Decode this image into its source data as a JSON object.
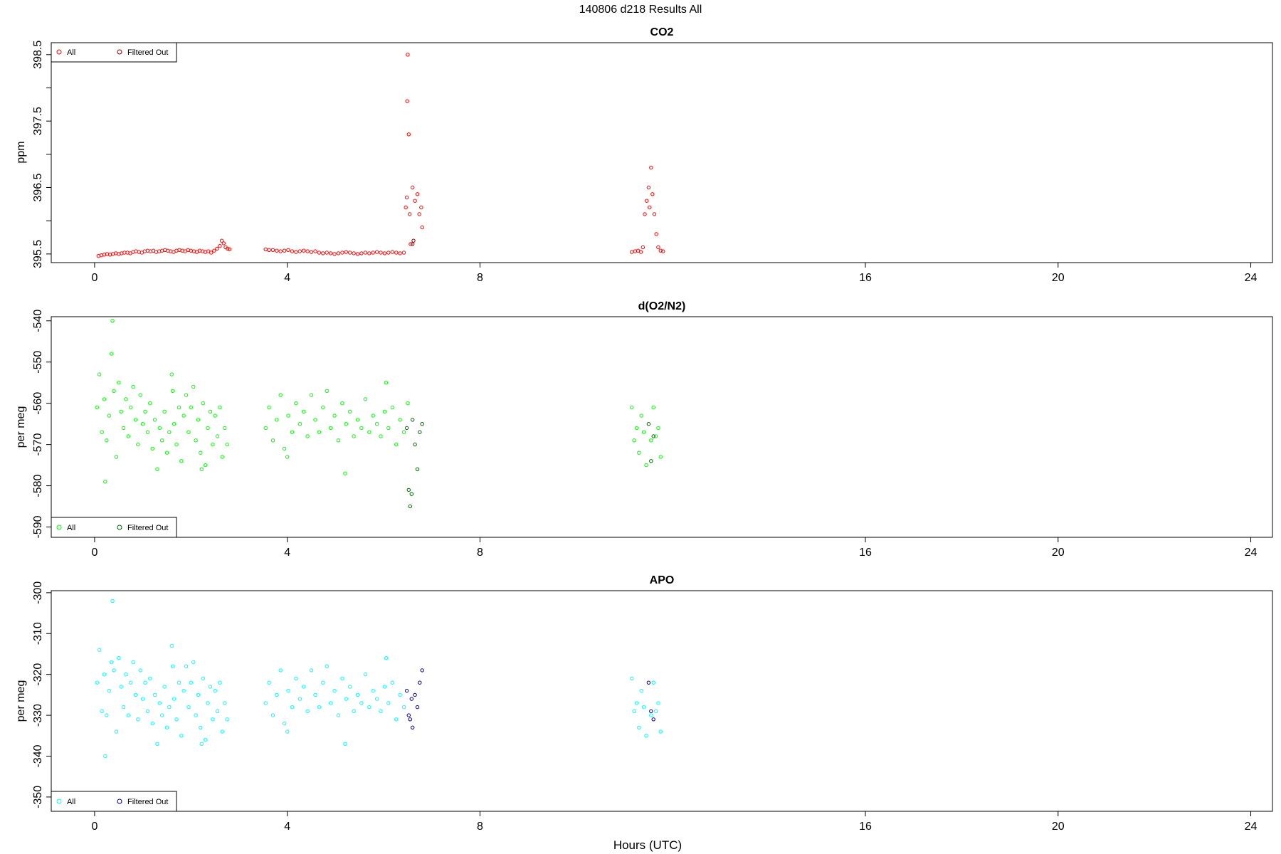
{
  "figure": {
    "title": "140806   d218   Results All",
    "xlabel": "Hours (UTC)"
  },
  "chart_data": [
    {
      "type": "scatter",
      "title": "CO2",
      "xlabel": "",
      "ylabel": "ppm",
      "xlim": [
        -0.9,
        24.45
      ],
      "ylim": [
        395.37,
        398.68
      ],
      "xticks": [
        0,
        4,
        8,
        16,
        20,
        24
      ],
      "xtick_labels": [
        "0",
        "4",
        "8",
        "16",
        "20",
        "24"
      ],
      "yticks": [
        395.5,
        396,
        396.5,
        397,
        397.5,
        398,
        398.5
      ],
      "ytick_labels": [
        "395.5",
        "",
        "396.5",
        "",
        "397.5",
        "",
        "398.5"
      ],
      "legend": {
        "position": "top-left",
        "entries": [
          "All",
          "Filtered Out"
        ]
      },
      "grid": false,
      "colors": {
        "all": "#ff0000",
        "filtered": "#8b0000"
      },
      "series": [
        {
          "name": "All",
          "x": [
            0.08,
            0.14,
            0.2,
            0.26,
            0.32,
            0.38,
            0.44,
            0.5,
            0.56,
            0.62,
            0.68,
            0.74,
            0.8,
            0.86,
            0.92,
            0.98,
            1.04,
            1.1,
            1.16,
            1.22,
            1.28,
            1.34,
            1.4,
            1.46,
            1.52,
            1.58,
            1.64,
            1.7,
            1.76,
            1.82,
            1.88,
            1.94,
            2.0,
            2.06,
            2.12,
            2.18,
            2.24,
            2.3,
            2.36,
            2.42,
            2.48,
            2.54,
            2.6,
            2.64,
            2.68,
            2.72,
            2.76,
            2.8,
            3.55,
            3.62,
            3.7,
            3.78,
            3.86,
            3.94,
            4.02,
            4.1,
            4.18,
            4.26,
            4.34,
            4.42,
            4.5,
            4.58,
            4.66,
            4.74,
            4.82,
            4.9,
            4.98,
            5.06,
            5.14,
            5.22,
            5.3,
            5.38,
            5.46,
            5.54,
            5.62,
            5.7,
            5.78,
            5.86,
            5.94,
            6.02,
            6.1,
            6.18,
            6.26,
            6.34,
            6.42,
            6.46,
            6.48,
            6.49,
            6.5,
            6.52,
            6.54,
            6.56,
            6.6,
            6.65,
            6.7,
            6.74,
            6.78,
            6.8,
            11.15,
            11.22,
            11.28,
            11.34,
            11.38,
            11.42,
            11.46,
            11.5,
            11.52,
            11.55,
            11.58,
            11.62,
            11.66,
            11.7,
            11.75,
            11.8
          ],
          "y": [
            395.47,
            395.48,
            395.49,
            395.5,
            395.49,
            395.5,
            395.51,
            395.5,
            395.51,
            395.52,
            395.52,
            395.51,
            395.53,
            395.54,
            395.53,
            395.52,
            395.54,
            395.55,
            395.54,
            395.55,
            395.53,
            395.54,
            395.55,
            395.56,
            395.55,
            395.54,
            395.53,
            395.55,
            395.56,
            395.55,
            395.54,
            395.56,
            395.55,
            395.54,
            395.53,
            395.55,
            395.54,
            395.53,
            395.54,
            395.52,
            395.55,
            395.58,
            395.62,
            395.7,
            395.66,
            395.6,
            395.58,
            395.57,
            395.57,
            395.56,
            395.56,
            395.55,
            395.54,
            395.55,
            395.56,
            395.54,
            395.53,
            395.54,
            395.55,
            395.54,
            395.53,
            395.54,
            395.52,
            395.51,
            395.52,
            395.51,
            395.5,
            395.51,
            395.52,
            395.53,
            395.52,
            395.51,
            395.5,
            395.51,
            395.52,
            395.51,
            395.52,
            395.53,
            395.52,
            395.51,
            395.52,
            395.53,
            395.52,
            395.51,
            395.52,
            396.2,
            396.35,
            397.8,
            398.5,
            397.3,
            396.1,
            395.65,
            396.5,
            396.3,
            396.4,
            396.1,
            396.2,
            395.9,
            395.53,
            395.54,
            395.55,
            395.53,
            395.6,
            396.1,
            396.3,
            396.5,
            396.2,
            396.8,
            396.4,
            396.1,
            395.8,
            395.6,
            395.55,
            395.54
          ],
          "marker": "circle",
          "color": "#ff0000"
        },
        {
          "name": "Filtered Out",
          "x": [
            6.6,
            6.62
          ],
          "y": [
            395.65,
            395.7
          ],
          "marker": "circle",
          "color": "#8b0000"
        }
      ]
    },
    {
      "type": "scatter",
      "title": "d(O2/N2)",
      "xlabel": "",
      "ylabel": "per meg",
      "xlim": [
        -0.9,
        24.45
      ],
      "ylim": [
        -592.5,
        -539.0
      ],
      "xticks": [
        0,
        4,
        8,
        16,
        20,
        24
      ],
      "xtick_labels": [
        "0",
        "4",
        "8",
        "16",
        "20",
        "24"
      ],
      "yticks": [
        -590,
        -580,
        -570,
        -560,
        -550,
        -540
      ],
      "ytick_labels": [
        "-590",
        "-580",
        "-570",
        "-560",
        "-550",
        "-540"
      ],
      "legend": {
        "position": "bottom-left",
        "entries": [
          "All",
          "Filtered Out"
        ]
      },
      "grid": false,
      "colors": {
        "all": "#00ff00",
        "filtered": "#006400"
      },
      "series": [
        {
          "name": "All",
          "x": [
            0.05,
            0.1,
            0.15,
            0.2,
            0.25,
            0.3,
            0.35,
            0.4,
            0.45,
            0.5,
            0.55,
            0.6,
            0.65,
            0.7,
            0.75,
            0.8,
            0.85,
            0.9,
            0.95,
            1.0,
            1.05,
            1.1,
            1.15,
            1.2,
            1.25,
            1.3,
            1.35,
            1.4,
            1.45,
            1.5,
            1.55,
            1.6,
            1.65,
            1.7,
            1.75,
            1.8,
            1.85,
            1.9,
            1.95,
            2.0,
            2.05,
            2.1,
            2.15,
            2.2,
            2.25,
            2.3,
            2.35,
            2.4,
            2.45,
            2.5,
            2.55,
            2.6,
            2.65,
            2.7,
            2.75,
            0.22,
            0.37,
            1.62,
            2.22,
            3.55,
            3.62,
            3.7,
            3.78,
            3.86,
            3.94,
            4.02,
            4.1,
            4.18,
            4.26,
            4.34,
            4.42,
            4.5,
            4.58,
            4.66,
            4.74,
            4.82,
            4.9,
            4.98,
            5.06,
            5.14,
            5.22,
            5.3,
            5.38,
            5.46,
            5.54,
            5.62,
            5.7,
            5.78,
            5.86,
            5.94,
            6.02,
            6.1,
            6.18,
            6.26,
            6.34,
            6.42,
            6.5,
            4.0,
            5.2,
            6.05,
            11.15,
            11.2,
            11.25,
            11.3,
            11.35,
            11.4,
            11.45,
            11.55,
            11.6,
            11.65,
            11.7,
            11.75
          ],
          "y": [
            -561,
            -553,
            -567,
            -559,
            -569,
            -563,
            -548,
            -557,
            -573,
            -555,
            -562,
            -566,
            -559,
            -568,
            -561,
            -556,
            -564,
            -570,
            -558,
            -565,
            -562,
            -567,
            -560,
            -571,
            -564,
            -576,
            -566,
            -569,
            -562,
            -572,
            -567,
            -553,
            -565,
            -570,
            -561,
            -574,
            -563,
            -558,
            -567,
            -561,
            -556,
            -569,
            -564,
            -572,
            -560,
            -575,
            -566,
            -562,
            -570,
            -563,
            -568,
            -561,
            -573,
            -566,
            -570,
            -579,
            -540,
            -557,
            -576,
            -566,
            -561,
            -569,
            -564,
            -558,
            -571,
            -563,
            -567,
            -560,
            -565,
            -562,
            -568,
            -558,
            -564,
            -567,
            -561,
            -557,
            -566,
            -563,
            -569,
            -560,
            -565,
            -562,
            -568,
            -564,
            -566,
            -559,
            -567,
            -563,
            -565,
            -568,
            -562,
            -566,
            -561,
            -570,
            -564,
            -567,
            -560,
            -573,
            -577,
            -555,
            -561,
            -569,
            -566,
            -572,
            -563,
            -567,
            -575,
            -569,
            -561,
            -568,
            -566,
            -573
          ],
          "marker": "circle",
          "color": "#00ff00"
        },
        {
          "name": "Filtered Out",
          "x": [
            6.48,
            6.52,
            6.55,
            6.58,
            6.6,
            6.65,
            6.7,
            6.75,
            6.8,
            11.5,
            11.55,
            11.6
          ],
          "y": [
            -566,
            -581,
            -585,
            -582,
            -564,
            -570,
            -576,
            -567,
            -565,
            -565,
            -574,
            -568
          ],
          "marker": "circle",
          "color": "#006400"
        }
      ]
    },
    {
      "type": "scatter",
      "title": "APO",
      "xlabel": "",
      "ylabel": "per meg",
      "xlim": [
        -0.9,
        24.45
      ],
      "ylim": [
        -353.5,
        -299.5
      ],
      "xticks": [
        0,
        4,
        8,
        16,
        20,
        24
      ],
      "xtick_labels": [
        "0",
        "4",
        "8",
        "16",
        "20",
        "24"
      ],
      "yticks": [
        -350,
        -340,
        -330,
        -320,
        -310,
        -300
      ],
      "ytick_labels": [
        "-350",
        "-340",
        "-330",
        "-320",
        "-310",
        "-300"
      ],
      "legend": {
        "position": "bottom-left",
        "entries": [
          "All",
          "Filtered Out"
        ]
      },
      "grid": false,
      "colors": {
        "all": "#00ffff",
        "filtered": "#00008b"
      },
      "series": [
        {
          "name": "All",
          "x": [
            0.05,
            0.1,
            0.15,
            0.2,
            0.25,
            0.3,
            0.35,
            0.4,
            0.45,
            0.5,
            0.55,
            0.6,
            0.65,
            0.7,
            0.75,
            0.8,
            0.85,
            0.9,
            0.95,
            1.0,
            1.05,
            1.1,
            1.15,
            1.2,
            1.25,
            1.3,
            1.35,
            1.4,
            1.45,
            1.5,
            1.55,
            1.6,
            1.65,
            1.7,
            1.75,
            1.8,
            1.85,
            1.9,
            1.95,
            2.0,
            2.05,
            2.1,
            2.15,
            2.2,
            2.25,
            2.3,
            2.35,
            2.4,
            2.45,
            2.5,
            2.55,
            2.6,
            2.65,
            2.7,
            2.75,
            0.22,
            0.37,
            1.62,
            2.22,
            3.55,
            3.62,
            3.7,
            3.78,
            3.86,
            3.94,
            4.02,
            4.1,
            4.18,
            4.26,
            4.34,
            4.42,
            4.5,
            4.58,
            4.66,
            4.74,
            4.82,
            4.9,
            4.98,
            5.06,
            5.14,
            5.22,
            5.3,
            5.38,
            5.46,
            5.54,
            5.62,
            5.7,
            5.78,
            5.86,
            5.94,
            6.02,
            6.1,
            6.18,
            6.26,
            6.34,
            6.42,
            4.0,
            5.2,
            6.05,
            11.15,
            11.2,
            11.25,
            11.3,
            11.35,
            11.4,
            11.45,
            11.55,
            11.6,
            11.65,
            11.7,
            11.75
          ],
          "y": [
            -322,
            -314,
            -329,
            -320,
            -330,
            -324,
            -317,
            -319,
            -334,
            -316,
            -323,
            -328,
            -320,
            -330,
            -322,
            -317,
            -325,
            -331,
            -319,
            -326,
            -322,
            -329,
            -321,
            -332,
            -325,
            -337,
            -327,
            -330,
            -323,
            -333,
            -328,
            -313,
            -326,
            -331,
            -322,
            -335,
            -324,
            -318,
            -328,
            -322,
            -317,
            -330,
            -325,
            -333,
            -321,
            -336,
            -327,
            -323,
            -331,
            -324,
            -329,
            -322,
            -334,
            -327,
            -331,
            -340,
            -302,
            -318,
            -337,
            -327,
            -322,
            -330,
            -325,
            -319,
            -332,
            -324,
            -328,
            -321,
            -326,
            -323,
            -329,
            -319,
            -325,
            -328,
            -322,
            -318,
            -327,
            -324,
            -330,
            -321,
            -326,
            -323,
            -329,
            -325,
            -327,
            -320,
            -328,
            -324,
            -326,
            -329,
            -323,
            -327,
            -322,
            -331,
            -325,
            -328,
            -334,
            -337,
            -316,
            -321,
            -329,
            -327,
            -333,
            -324,
            -328,
            -335,
            -330,
            -322,
            -329,
            -327,
            -334
          ],
          "marker": "circle",
          "color": "#00ffff"
        },
        {
          "name": "Filtered Out",
          "x": [
            6.48,
            6.52,
            6.55,
            6.58,
            6.6,
            6.65,
            6.7,
            6.75,
            6.8,
            11.5,
            11.55,
            11.6
          ],
          "y": [
            -324,
            -330,
            -331,
            -326,
            -333,
            -325,
            -328,
            -322,
            -319,
            -322,
            -329,
            -331
          ],
          "marker": "circle",
          "color": "#00008b"
        }
      ]
    }
  ]
}
